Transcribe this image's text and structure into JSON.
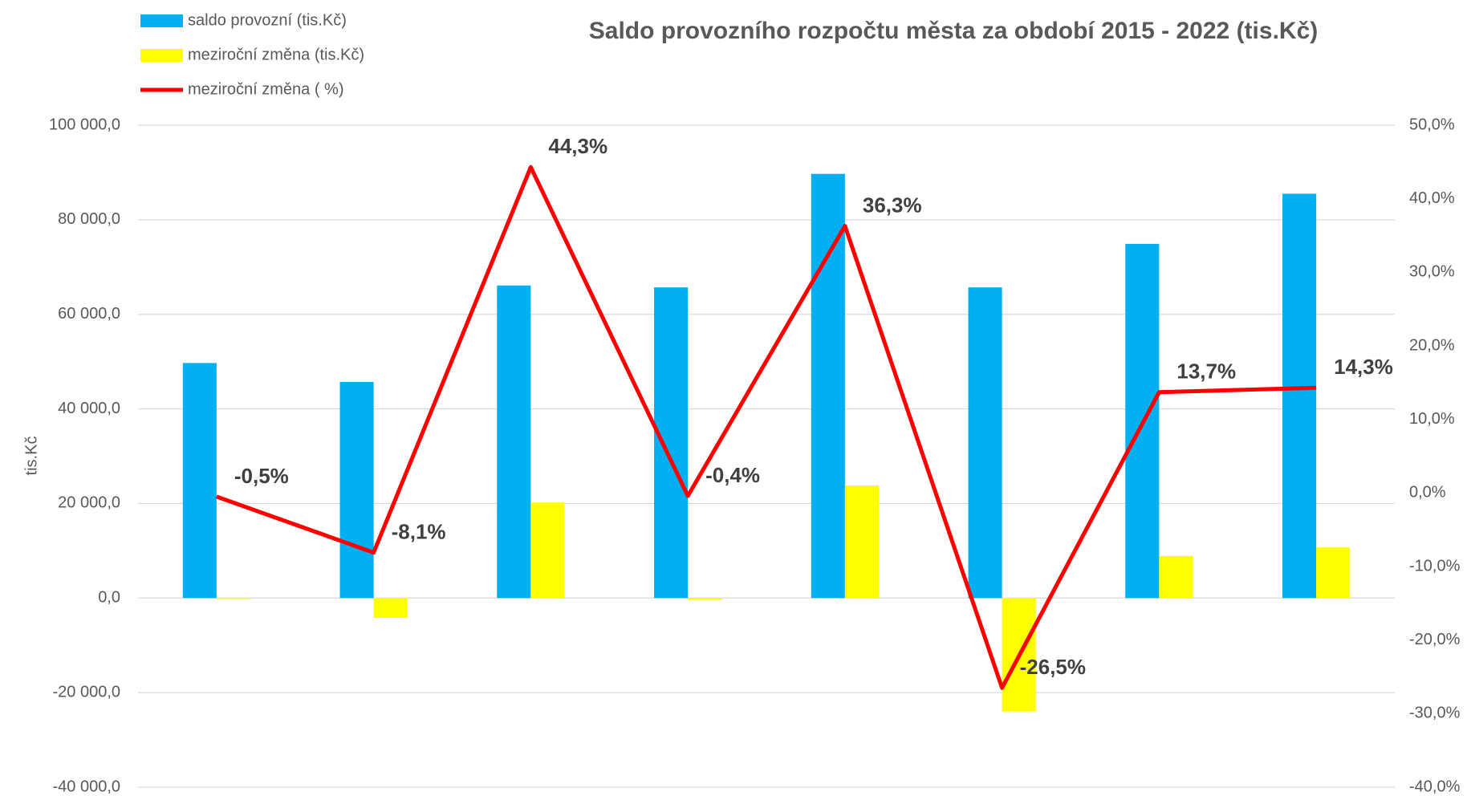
{
  "chart_data": {
    "type": "bar_line",
    "title": "Saldo provozního rozpočtu města za období 2015 - 2022 (tis.Kč)",
    "y_label": "tis.Kč",
    "categories": [
      null,
      null,
      null,
      null,
      null,
      null,
      null,
      null
    ],
    "series": [
      {
        "name": "saldo provozní (tis.Kč)",
        "color": "#00b0f0",
        "type": "bar",
        "values": [
          49700,
          45700,
          66100,
          65700,
          89700,
          65700,
          74900,
          85500
        ]
      },
      {
        "name": "meziroční změna (tis.Kč)",
        "color": "#ffff00",
        "type": "bar",
        "values": [
          -200,
          -4200,
          20200,
          -300,
          23800,
          -24000,
          8900,
          10700
        ]
      },
      {
        "name": "meziroční změna ( %)",
        "color": "#ff0000",
        "type": "line",
        "axis": "y2",
        "values": [
          -0.5,
          -8.1,
          44.3,
          -0.4,
          36.3,
          -26.5,
          13.7,
          14.3
        ],
        "value_labels": [
          "-0,5%",
          "-8,1%",
          "44,3%",
          "-0,4%",
          "36,3%",
          "-26,5%",
          "13,7%",
          "14,3%"
        ]
      }
    ],
    "ylim": [
      -40000,
      100000
    ],
    "yticks": [
      {
        "value": -40000,
        "label": "-40 000,0"
      },
      {
        "value": -20000,
        "label": "-20 000,0"
      },
      {
        "value": 0,
        "label": "0,0"
      },
      {
        "value": 20000,
        "label": "20 000,0"
      },
      {
        "value": 40000,
        "label": "40 000,0"
      },
      {
        "value": 60000,
        "label": "60 000,0"
      },
      {
        "value": 80000,
        "label": "80 000,0"
      },
      {
        "value": 100000,
        "label": "100 000,0"
      }
    ],
    "y2lim": [
      -40,
      50
    ],
    "y2ticks": [
      {
        "value": -40,
        "label": "-40,0%"
      },
      {
        "value": -30,
        "label": "-30,0%"
      },
      {
        "value": -20,
        "label": "-20,0%"
      },
      {
        "value": -10,
        "label": "-10,0%"
      },
      {
        "value": 0,
        "label": "0,0%"
      },
      {
        "value": 10,
        "label": "10,0%"
      },
      {
        "value": 20,
        "label": "20,0%"
      },
      {
        "value": 30,
        "label": "30,0%"
      },
      {
        "value": 40,
        "label": "40,0%"
      },
      {
        "value": 50,
        "label": "50,0%"
      }
    ],
    "grid": true,
    "legend": "top-left"
  }
}
